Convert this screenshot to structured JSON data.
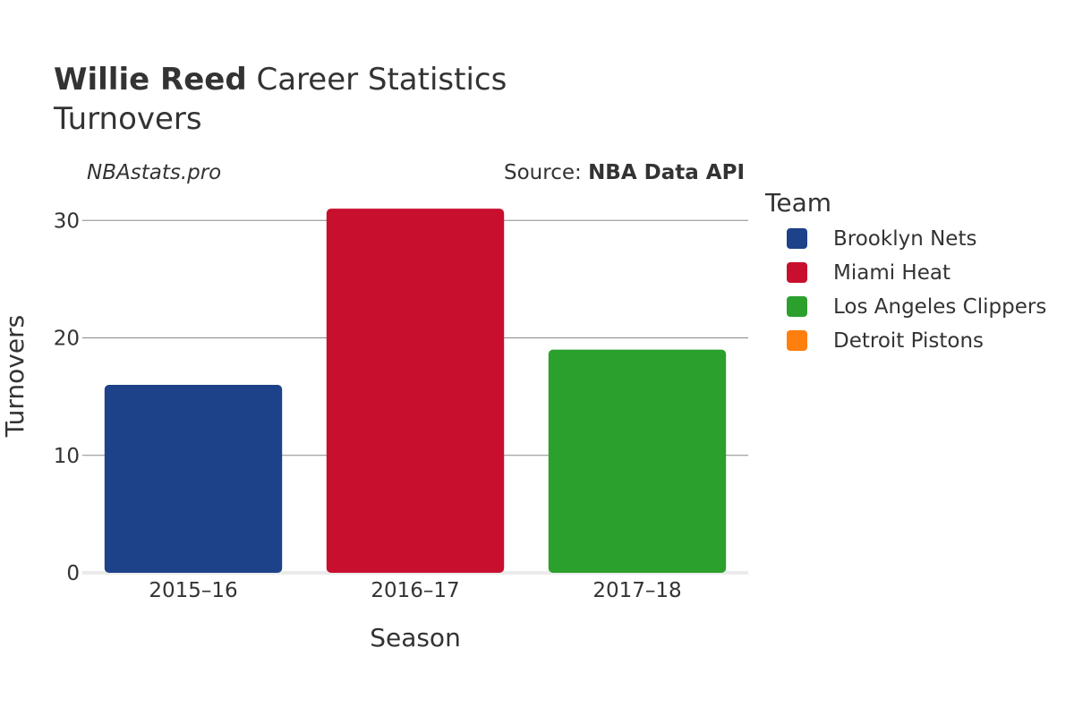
{
  "header": {
    "title_player": "Willie Reed",
    "title_rest": " Career Statistics",
    "subtitle": "Turnovers"
  },
  "credits": {
    "site": "NBAstats.pro",
    "source_prefix": "Source: ",
    "source_name": "NBA Data API"
  },
  "legend": {
    "title": "Team",
    "items": [
      {
        "label": "Brooklyn Nets",
        "color": "#1d4289"
      },
      {
        "label": "Miami Heat",
        "color": "#c8102e"
      },
      {
        "label": "Los Angeles Clippers",
        "color": "#2ca02c"
      },
      {
        "label": "Detroit Pistons",
        "color": "#ff7f0e"
      }
    ]
  },
  "chart_data": {
    "type": "bar",
    "categories": [
      "2015–16",
      "2016–17",
      "2017–18"
    ],
    "values": [
      16,
      31,
      19
    ],
    "bar_teams": [
      "Brooklyn Nets",
      "Miami Heat",
      "Los Angeles Clippers"
    ],
    "bar_colors": [
      "#1d4289",
      "#c8102e",
      "#2ca02c"
    ],
    "xlabel": "Season",
    "ylabel": "Turnovers",
    "ylim": [
      0,
      32
    ],
    "yticks": [
      0,
      10,
      20,
      30
    ],
    "grid": true,
    "legend_position": "right"
  }
}
